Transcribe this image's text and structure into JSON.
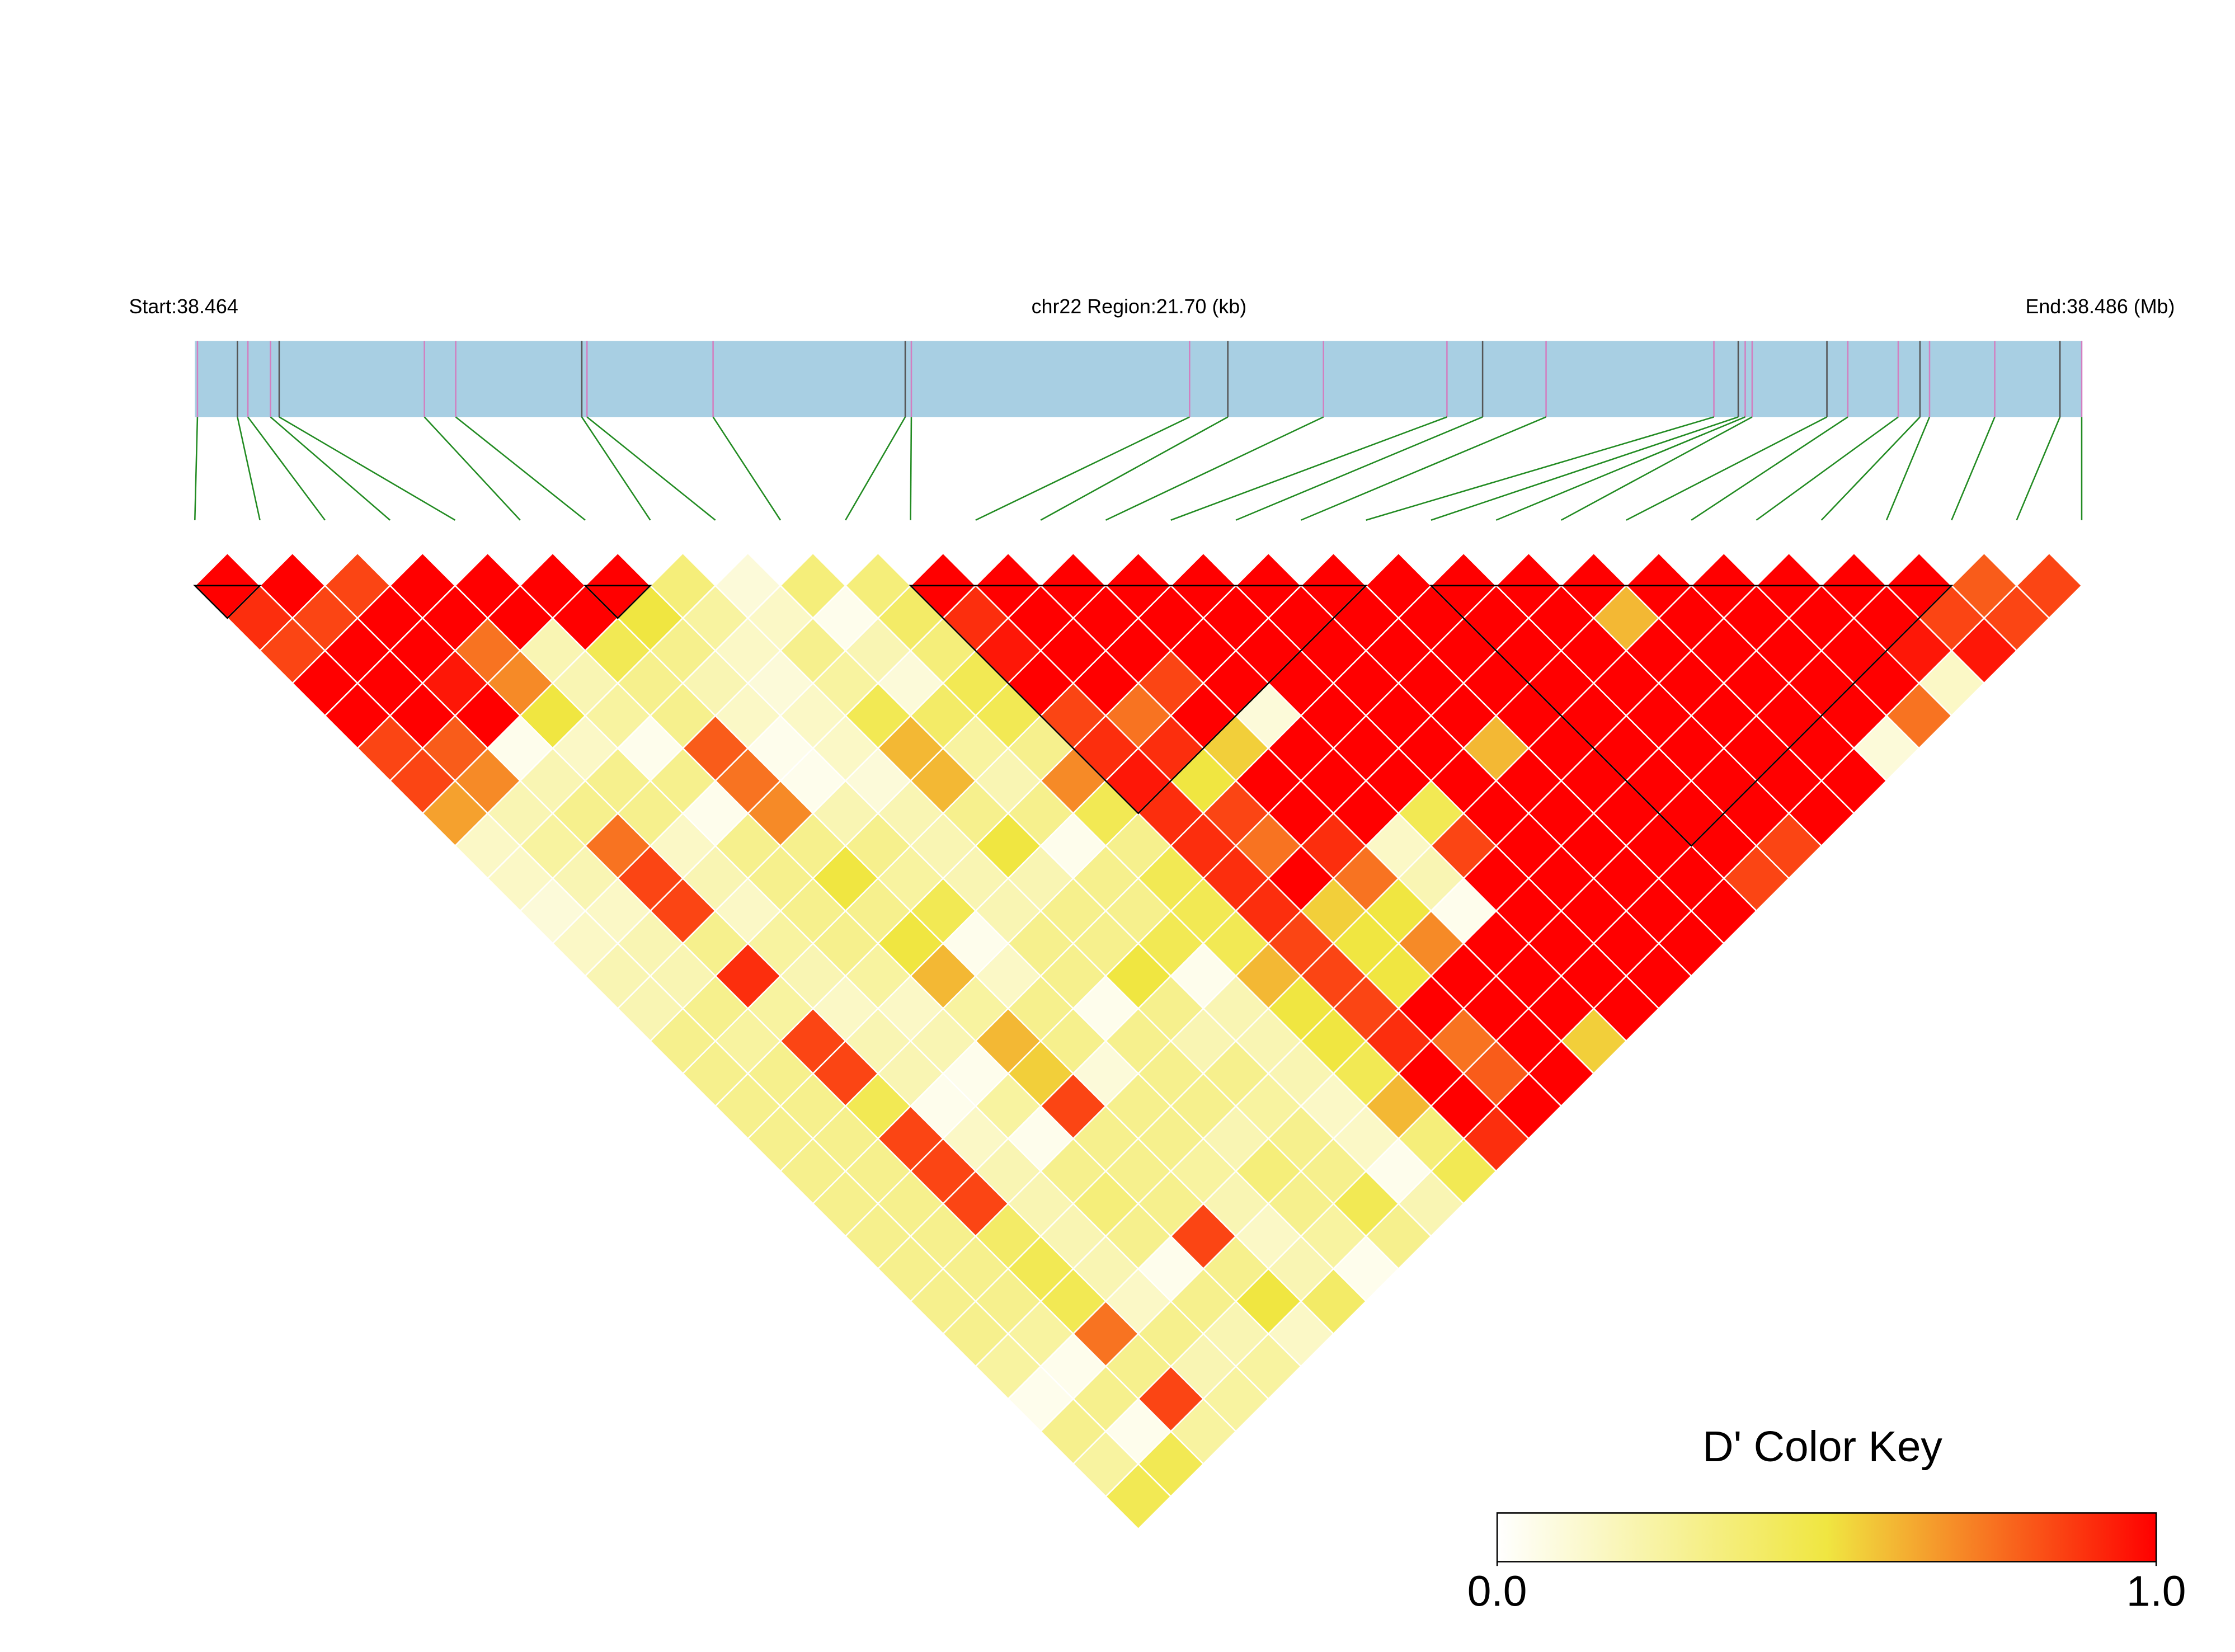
{
  "chart_data": {
    "type": "ld_heatmap",
    "start_label": "Start:38.464",
    "region_label": "chr22 Region:21.70 (kb)",
    "end_label": "End:38.486 (Mb)",
    "legend_title": "D' Color Key",
    "xlim": [
      38.464,
      38.4857
    ],
    "snp_positions": [
      38.46403,
      38.46449,
      38.46461,
      38.46487,
      38.46497,
      38.46664,
      38.467,
      38.46845,
      38.46851,
      38.46996,
      38.47217,
      38.47224,
      38.47544,
      38.47588,
      38.47698,
      38.4784,
      38.47881,
      38.47954,
      38.48147,
      38.48175,
      38.48183,
      38.48191,
      38.48277,
      38.48301,
      38.48359,
      38.48384,
      38.48395,
      38.4847,
      38.48545,
      38.4857
    ],
    "color_scale": [
      "#ffffff",
      "#f0e641",
      "#ff0000"
    ],
    "clim": [
      0,
      1
    ],
    "cticks": [
      {
        "value": 0,
        "label": "0.0"
      },
      {
        "value": 1,
        "label": "1.0"
      }
    ],
    "blocks": [
      [
        0,
        1
      ],
      [
        6,
        7
      ],
      [
        11,
        18
      ],
      [
        19,
        27
      ]
    ],
    "values": [
      [
        1,
        1,
        0.85,
        1,
        1,
        1,
        1,
        0.35,
        0.1,
        0.35,
        0.35,
        1,
        1,
        1,
        1,
        1,
        1,
        1,
        1,
        1,
        1,
        1,
        1,
        1,
        1,
        1,
        1,
        0.8,
        0.85
      ],
      [
        0.9,
        0.85,
        1,
        1,
        1,
        1,
        0.5,
        0.25,
        0.15,
        0.05,
        0.4,
        0.9,
        1,
        1,
        1,
        1,
        1,
        1,
        1,
        1,
        1,
        0.6,
        1,
        1,
        1,
        1,
        0.85,
        0.85
      ],
      [
        0.85,
        1,
        1,
        0.75,
        0.2,
        0.45,
        0.3,
        0.15,
        0.3,
        0.2,
        0.35,
        0.95,
        1,
        1,
        1,
        1,
        1,
        1,
        1,
        1,
        1,
        1,
        1,
        1,
        1,
        0.95,
        0.95
      ],
      [
        1,
        1,
        0.95,
        0.7,
        0.2,
        0.3,
        0.2,
        0.1,
        0.25,
        0.1,
        0.45,
        1,
        1,
        0.85,
        1,
        1,
        1,
        1,
        1,
        1,
        1,
        1,
        1,
        1,
        1,
        0.15
      ],
      [
        1,
        1,
        1,
        0.5,
        0.25,
        0.3,
        0.15,
        0.15,
        0.45,
        0.4,
        0.45,
        0.85,
        0.75,
        1,
        0.1,
        1,
        1,
        1,
        1,
        1,
        1,
        1,
        1,
        1,
        0.75
      ],
      [
        0.85,
        0.8,
        0.05,
        0.15,
        0.05,
        0.8,
        0.05,
        0.15,
        0.6,
        0.25,
        0.3,
        0.9,
        0.9,
        0.55,
        1,
        1,
        1,
        0.6,
        1,
        1,
        1,
        1,
        1,
        0.1
      ],
      [
        0.85,
        0.7,
        0.2,
        0.3,
        0.3,
        0.75,
        0.05,
        0.1,
        0.6,
        0.2,
        0.7,
        0.95,
        0.5,
        1,
        1,
        1,
        1,
        1,
        1,
        1,
        1,
        1,
        1
      ],
      [
        0.65,
        0.2,
        0.3,
        0.3,
        0.05,
        0.7,
        0.2,
        0.2,
        0.3,
        0.3,
        0.45,
        0.9,
        0.85,
        1,
        1,
        0.45,
        1,
        1,
        1,
        1,
        1,
        1
      ],
      [
        0.15,
        0.25,
        0.75,
        0.15,
        0.3,
        0.3,
        0.3,
        0.2,
        0.5,
        0.05,
        0.3,
        0.9,
        0.75,
        0.9,
        0.15,
        0.85,
        1,
        1,
        1,
        1,
        0.85
      ],
      [
        0.15,
        0.2,
        0.85,
        0.2,
        0.3,
        0.5,
        0.25,
        0.2,
        0.2,
        0.3,
        0.45,
        0.9,
        1,
        0.75,
        0.2,
        1,
        1,
        1,
        1,
        0.85
      ],
      [
        0.1,
        0.15,
        0.85,
        0.15,
        0.3,
        0.3,
        0.45,
        0.2,
        0.3,
        0.3,
        0.45,
        0.9,
        0.55,
        0.5,
        0.05,
        1,
        1,
        1,
        1
      ],
      [
        0.15,
        0.2,
        0.3,
        0.25,
        0.3,
        0.5,
        0.05,
        0.3,
        0.3,
        0.45,
        0.45,
        0.85,
        0.5,
        0.7,
        1,
        1,
        1,
        1
      ],
      [
        0.2,
        0.2,
        0.9,
        0.2,
        0.25,
        0.6,
        0.15,
        0.3,
        0.5,
        0.05,
        0.6,
        0.85,
        0.5,
        1,
        1,
        1,
        1
      ],
      [
        0.2,
        0.3,
        0.25,
        0.15,
        0.15,
        0.25,
        0.3,
        0.05,
        0.3,
        0.2,
        0.5,
        0.85,
        1,
        1,
        1,
        1
      ],
      [
        0.3,
        0.25,
        0.85,
        0.2,
        0.2,
        0.6,
        0.3,
        0.3,
        0.2,
        0.2,
        0.5,
        0.9,
        0.75,
        1,
        0.55
      ],
      [
        0.3,
        0.3,
        0.85,
        0.2,
        0.05,
        0.55,
        0.1,
        0.3,
        0.3,
        0.2,
        0.45,
        1,
        0.8,
        1
      ],
      [
        0.3,
        0.3,
        0.45,
        0.05,
        0.25,
        0.85,
        0.3,
        0.3,
        0.25,
        0.15,
        0.6,
        1,
        1
      ],
      [
        0.3,
        0.3,
        0.85,
        0.15,
        0.05,
        0.3,
        0.3,
        0.2,
        0.3,
        0.15,
        0.35,
        0.9
      ],
      [
        0.3,
        0.3,
        0.85,
        0.2,
        0.3,
        0.3,
        0.25,
        0.35,
        0.3,
        0.05,
        0.45
      ],
      [
        0.3,
        0.3,
        0.85,
        0.2,
        0.35,
        0.3,
        0.2,
        0.3,
        0.45,
        0.2
      ],
      [
        0.3,
        0.3,
        0.4,
        0.2,
        0.3,
        0.85,
        0.15,
        0.25,
        0.3
      ],
      [
        0.3,
        0.3,
        0.45,
        0.2,
        0.05,
        0.3,
        0.2,
        0.05
      ],
      [
        0.3,
        0.3,
        0.45,
        0.15,
        0.3,
        0.5,
        0.4
      ],
      [
        0.3,
        0.25,
        0.75,
        0.3,
        0.2,
        0.15
      ],
      [
        0.25,
        0.05,
        0.3,
        0.2,
        0.25
      ],
      [
        0.05,
        0.3,
        0.85,
        0.25
      ],
      [
        0.3,
        0.05,
        0.25
      ],
      [
        0.25,
        0.45
      ],
      [
        0.45
      ]
    ]
  }
}
